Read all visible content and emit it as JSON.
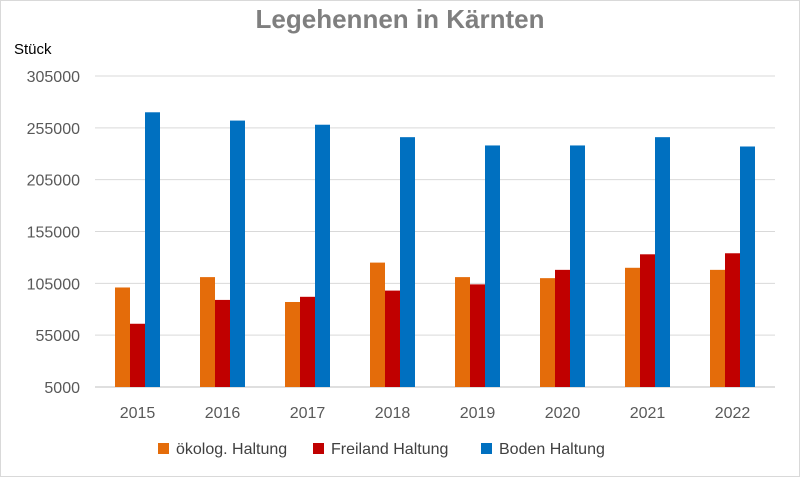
{
  "chart_data": {
    "type": "bar",
    "title": "Legehennen in Kärnten",
    "xlabel": "",
    "ylabel": "Stück",
    "categories": [
      "2015",
      "2016",
      "2017",
      "2018",
      "2019",
      "2020",
      "2021",
      "2022"
    ],
    "yticks": [
      "5000",
      "55000",
      "105000",
      "155000",
      "205000",
      "255000",
      "305000"
    ],
    "ylim": [
      5000,
      305000
    ],
    "grid": true,
    "legend_position": "bottom",
    "series": [
      {
        "name": "ökolog. Haltung",
        "color": "#e46c0a",
        "values": [
          101000,
          111000,
          87000,
          125000,
          111000,
          110000,
          120000,
          118000
        ]
      },
      {
        "name": "Freiland Haltung",
        "color": "#c00000",
        "values": [
          66000,
          89000,
          92000,
          98000,
          104000,
          118000,
          133000,
          134000
        ]
      },
      {
        "name": "Boden Haltung",
        "color": "#0070c0",
        "values": [
          270000,
          262000,
          258000,
          246000,
          238000,
          238000,
          246000,
          237000
        ]
      }
    ]
  }
}
